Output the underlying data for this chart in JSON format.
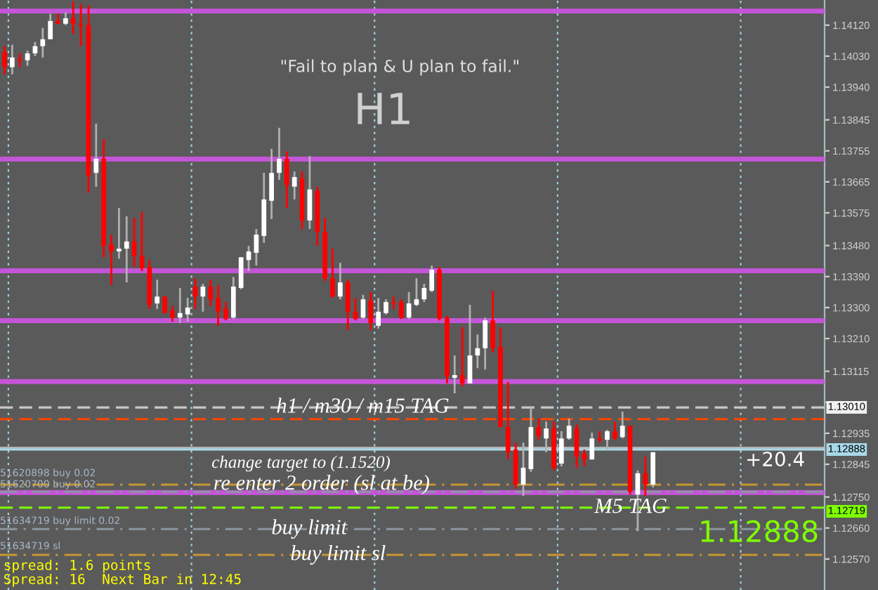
{
  "chart_data": {
    "type": "candlestick",
    "title": "\"Fail to plan & U plan to fail.\"",
    "subtitle": "H1",
    "categories": [
      null,
      null,
      null,
      null,
      null,
      null,
      null,
      null,
      null,
      null,
      null,
      null,
      null,
      null,
      null,
      null,
      null,
      null,
      null,
      null,
      null,
      null,
      null,
      null,
      null,
      null,
      null,
      null,
      null,
      null,
      null,
      null,
      null,
      null,
      null,
      null,
      null,
      null,
      null,
      null,
      null,
      null,
      null,
      null,
      null,
      null,
      null,
      null,
      null,
      null,
      null,
      null,
      null,
      null,
      null,
      null,
      null,
      null,
      null,
      null,
      null,
      null,
      null,
      null,
      null,
      null,
      null,
      null,
      null,
      null,
      null,
      null,
      null,
      null,
      null,
      null,
      null,
      null,
      null,
      null,
      null,
      null,
      null,
      null,
      null,
      null,
      null,
      null,
      null,
      null,
      null,
      null,
      null,
      null,
      null,
      null,
      null,
      null,
      null,
      null,
      null,
      null,
      null,
      null,
      null,
      null,
      null,
      null
    ],
    "ohlc": [
      [
        1.14042,
        1.14059,
        1.13977,
        1.13998
      ],
      [
        1.13998,
        1.14063,
        1.13977,
        1.14026
      ],
      [
        1.14022,
        1.14038,
        1.13998,
        1.14018
      ],
      [
        1.14018,
        1.14046,
        1.14002,
        1.14038
      ],
      [
        1.14038,
        1.14071,
        1.1403,
        1.14059
      ],
      [
        1.14059,
        1.14112,
        1.14026,
        1.14079
      ],
      [
        1.14079,
        1.14153,
        1.14079,
        1.14132
      ],
      [
        1.14132,
        1.14153,
        1.14124,
        1.14124
      ],
      [
        1.14124,
        1.14157,
        1.1412,
        1.1414
      ],
      [
        1.1414,
        1.14189,
        1.14095,
        1.14124
      ],
      [
        1.14124,
        1.14181,
        1.14059,
        1.1412
      ],
      [
        1.1412,
        1.14177,
        1.13634,
        1.13683
      ],
      [
        1.13691,
        1.13834,
        1.13651,
        1.13732
      ],
      [
        1.13732,
        1.13789,
        1.13446,
        1.13479
      ],
      [
        1.13483,
        1.13512,
        1.13365,
        1.13463
      ],
      [
        1.13463,
        1.13589,
        1.13442,
        1.13471
      ],
      [
        1.13471,
        1.13565,
        1.13373,
        1.13492
      ],
      [
        1.13492,
        1.13561,
        1.13418,
        1.1345
      ],
      [
        1.1345,
        1.13577,
        1.13406,
        1.13414
      ],
      [
        1.13418,
        1.13438,
        1.13296,
        1.13308
      ],
      [
        1.13312,
        1.13381,
        1.13296,
        1.13332
      ],
      [
        1.13332,
        1.13332,
        1.13284,
        1.13284
      ],
      [
        1.13292,
        1.13304,
        1.13259,
        1.13271
      ],
      [
        1.13271,
        1.13357,
        1.13255,
        1.13284
      ],
      [
        1.1328,
        1.13328,
        1.13259,
        1.133
      ],
      [
        1.13361,
        1.13385,
        1.13296,
        1.13332
      ],
      [
        1.13332,
        1.13369,
        1.13288,
        1.13361
      ],
      [
        1.13361,
        1.13381,
        1.13304,
        1.13324
      ],
      [
        1.13328,
        1.13365,
        1.13247,
        1.13288
      ],
      [
        1.13296,
        1.13316,
        1.13263,
        1.13267
      ],
      [
        1.13271,
        1.13389,
        1.13267,
        1.13361
      ],
      [
        1.13357,
        1.13446,
        1.13353,
        1.13446
      ],
      [
        1.13438,
        1.13479,
        1.13406,
        1.13463
      ],
      [
        1.13459,
        1.13528,
        1.13422,
        1.13512
      ],
      [
        1.13508,
        1.13691,
        1.13488,
        1.13614
      ],
      [
        1.1361,
        1.13761,
        1.13557,
        1.13691
      ],
      [
        1.13691,
        1.13822,
        1.13671,
        1.13732
      ],
      [
        1.13732,
        1.13753,
        1.13589,
        1.13655
      ],
      [
        1.13651,
        1.13695,
        1.13614,
        1.13679
      ],
      [
        1.13675,
        1.13695,
        1.13528,
        1.13553
      ],
      [
        1.13553,
        1.1374,
        1.13528,
        1.13643
      ],
      [
        1.13639,
        1.13651,
        1.13479,
        1.1352
      ],
      [
        1.1352,
        1.13561,
        1.13377,
        1.13385
      ],
      [
        1.13385,
        1.13471,
        1.13328,
        1.13332
      ],
      [
        1.13332,
        1.1343,
        1.13324,
        1.13373
      ],
      [
        1.13373,
        1.13381,
        1.13235,
        1.13288
      ],
      [
        1.13288,
        1.13328,
        1.13263,
        1.13267
      ],
      [
        1.13271,
        1.13337,
        1.13267,
        1.13324
      ],
      [
        1.1332,
        1.13345,
        1.13235,
        1.13255
      ],
      [
        1.13247,
        1.13328,
        1.13239,
        1.13288
      ],
      [
        1.13284,
        1.13324,
        1.1328,
        1.13316
      ],
      [
        1.13316,
        1.13332,
        1.13296,
        1.13312
      ],
      [
        1.13316,
        1.13324,
        1.13267,
        1.13271
      ],
      [
        1.13271,
        1.13345,
        1.13267,
        1.13312
      ],
      [
        1.13308,
        1.13385,
        1.13304,
        1.13324
      ],
      [
        1.13324,
        1.13369,
        1.13316,
        1.13357
      ],
      [
        1.13349,
        1.13422,
        1.13345,
        1.1341
      ],
      [
        1.1341,
        1.13418,
        1.13263,
        1.13267
      ],
      [
        1.13271,
        1.13276,
        1.1308,
        1.131
      ],
      [
        1.13096,
        1.13161,
        1.13051,
        1.13104
      ],
      [
        1.13104,
        1.13243,
        1.13071,
        1.1308
      ],
      [
        1.1308,
        1.13308,
        1.1308,
        1.13161
      ],
      [
        1.13161,
        1.13222,
        1.13124,
        1.13182
      ],
      [
        1.13182,
        1.13271,
        1.1312,
        1.13263
      ],
      [
        1.13263,
        1.13349,
        1.1317,
        1.13182
      ],
      [
        1.13186,
        1.13243,
        1.12953,
        1.12953
      ],
      [
        1.12953,
        1.13084,
        1.12859,
        1.1288
      ],
      [
        1.12888,
        1.12908,
        1.12774,
        1.12786
      ],
      [
        1.12786,
        1.12908,
        1.12753,
        1.12835
      ],
      [
        1.12831,
        1.1301,
        1.12823,
        1.12953
      ],
      [
        1.12953,
        1.12978,
        1.12916,
        1.12928
      ],
      [
        1.1292,
        1.12969,
        1.1288,
        1.12949
      ],
      [
        1.12949,
        1.12969,
        1.12827,
        1.12835
      ],
      [
        1.12847,
        1.12941,
        1.12839,
        1.1292
      ],
      [
        1.1292,
        1.12978,
        1.12916,
        1.12957
      ],
      [
        1.12949,
        1.12961,
        1.12835,
        1.12867
      ],
      [
        1.12876,
        1.12888,
        1.12839,
        1.12859
      ],
      [
        1.12859,
        1.12937,
        1.12859,
        1.1292
      ],
      [
        1.1292,
        1.12941,
        1.12908,
        1.12916
      ],
      [
        1.12916,
        1.12945,
        1.12888,
        1.12941
      ],
      [
        1.12941,
        1.12969,
        1.12916,
        1.1292
      ],
      [
        1.12924,
        1.12998,
        1.1292,
        1.12957
      ],
      [
        1.12957,
        1.12957,
        1.12757,
        1.12765
      ],
      [
        1.12757,
        1.12827,
        1.12651,
        1.12819
      ],
      [
        1.12819,
        1.12867,
        1.12753,
        1.12786
      ],
      [
        1.12786,
        1.1288,
        1.12778,
        1.1288
      ],
      null,
      null,
      null,
      null,
      null,
      null,
      null,
      null,
      null,
      null,
      null,
      null,
      null,
      null,
      null,
      null,
      null,
      null,
      null,
      null,
      null,
      null
    ],
    "colors": [
      "#ff0000",
      "#ffffff",
      "#ff0000",
      "#ffffff",
      "#ffffff",
      "#ffffff",
      "#ffffff",
      "#ff0000",
      "#ffffff",
      "#ff0000",
      "#ff0000",
      "#ff0000",
      "#ffffff",
      "#ff0000",
      "#ff0000",
      "#ffffff",
      "#ffffff",
      "#ff0000",
      "#ff0000",
      "#ff0000",
      "#ffffff",
      "#ff0000",
      "#ff0000",
      "#ffffff",
      "#ffffff",
      "#ff0000",
      "#ffffff",
      "#ff0000",
      "#ff0000",
      "#ff0000",
      "#ffffff",
      "#ffffff",
      "#ffffff",
      "#ffffff",
      "#ffffff",
      "#ffffff",
      "#ffffff",
      "#ff0000",
      "#ffffff",
      "#ff0000",
      "#ffffff",
      "#ff0000",
      "#ff0000",
      "#ff0000",
      "#ffffff",
      "#ff0000",
      "#ff0000",
      "#ffffff",
      "#ff0000",
      "#ffffff",
      "#ffffff",
      "#ff0000",
      "#ff0000",
      "#ffffff",
      "#ffffff",
      "#ffffff",
      "#ffffff",
      "#ff0000",
      "#ff0000",
      "#ffffff",
      "#ff0000",
      "#ffffff",
      "#ffffff",
      "#ffffff",
      "#ff0000",
      "#ff0000",
      "#ff0000",
      "#ff0000",
      "#ffffff",
      "#ffffff",
      "#ff0000",
      "#ffffff",
      "#ff0000",
      "#ffffff",
      "#ffffff",
      "#ff0000",
      "#ff0000",
      "#ffffff",
      "#ff0000",
      "#ffffff",
      "#ff0000",
      "#ffffff",
      "#ff0000",
      "#ffffff",
      "#ff0000",
      "#ffffff",
      null,
      null,
      null,
      null,
      null,
      null,
      null,
      null,
      null,
      null,
      null,
      null,
      null,
      null,
      null,
      null,
      null,
      null,
      null,
      null,
      null,
      null
    ],
    "ylim": [
      1.1248,
      1.14193
    ],
    "yticks": [
      {
        "value": 1.1412,
        "label": "1.14120"
      },
      {
        "value": 1.1403,
        "label": "1.14030"
      },
      {
        "value": 1.1394,
        "label": "1.13940"
      },
      {
        "value": 1.13845,
        "label": "1.13845"
      },
      {
        "value": 1.13755,
        "label": "1.13755"
      },
      {
        "value": 1.13665,
        "label": "1.13665"
      },
      {
        "value": 1.13575,
        "label": "1.13575"
      },
      {
        "value": 1.1348,
        "label": "1.13480"
      },
      {
        "value": 1.1339,
        "label": "1.13390"
      },
      {
        "value": 1.133,
        "label": "1.13300"
      },
      {
        "value": 1.1321,
        "label": "1.13210"
      },
      {
        "value": 1.13115,
        "label": "1.13115"
      },
      {
        "value": 1.13025,
        "label": null
      },
      {
        "value": 1.12935,
        "label": "1.12935"
      },
      {
        "value": 1.12845,
        "label": "1.12845"
      },
      {
        "value": 1.1275,
        "label": "1.12750"
      },
      {
        "value": 1.1266,
        "label": "1.12660"
      },
      {
        "value": 1.1257,
        "label": "1.12570"
      }
    ],
    "tick_labels": "y",
    "ref_lines": [
      {
        "axis": "y",
        "value": 1.14161,
        "color": "#c455d8",
        "line_style": "solid"
      },
      {
        "axis": "y",
        "value": 1.13731,
        "color": "#c455d8",
        "line_style": "solid"
      },
      {
        "axis": "y",
        "value": 1.13407,
        "color": "#c455d8",
        "line_style": "solid"
      },
      {
        "axis": "y",
        "value": 1.13262,
        "color": "#c455d8",
        "line_style": "solid"
      },
      {
        "axis": "y",
        "value": 1.13085,
        "color": "#c455d8",
        "line_style": "solid"
      },
      {
        "axis": "y",
        "value": 1.12763,
        "color": "#c455d8",
        "line_style": "solid"
      },
      {
        "axis": "y",
        "value": 1.1301,
        "color": "#c8c8c8",
        "line_style": "dashed",
        "label": "h1 / m30 / m15 TAG"
      },
      {
        "axis": "y",
        "value": 1.12976,
        "color": "#ff4500",
        "line_style": "dashed"
      },
      {
        "axis": "y",
        "value": 1.12893,
        "color": "#b4b4b4",
        "line_style": "solid"
      },
      {
        "axis": "y",
        "value": 1.12888,
        "color": "#a8d8e8",
        "line_style": "solid"
      },
      {
        "axis": "y",
        "value": 1.12786,
        "color": "#c89632",
        "line_style": "dashdot",
        "label": "re enter 2 order (sl at be)"
      },
      {
        "axis": "y",
        "value": 1.12765,
        "color": "#8c96a0",
        "line_style": "dashdot"
      },
      {
        "axis": "y",
        "value": 1.12719,
        "color": "#7fff00",
        "line_style": "dashed",
        "label": "M5 TAG"
      },
      {
        "axis": "y",
        "value": 1.12657,
        "color": "#8c96a0",
        "line_style": "dashdot",
        "label": "buy limit"
      },
      {
        "axis": "y",
        "value": 1.12582,
        "color": "#c89632",
        "line_style": "dashdot",
        "label": "buy limit sl"
      }
    ],
    "annotations": [
      "change target to (1.1520)",
      "+20.4",
      "1.12888",
      "spread: 1.6 points",
      "Spread: 16  Next Bar in 12:45",
      "51620898 buy 0.02",
      "51620700 buy 0.02",
      "51634719 buy limit 0.02",
      "51634719 sl",
      "1.13010",
      "1.12888",
      "1.12719"
    ]
  }
}
